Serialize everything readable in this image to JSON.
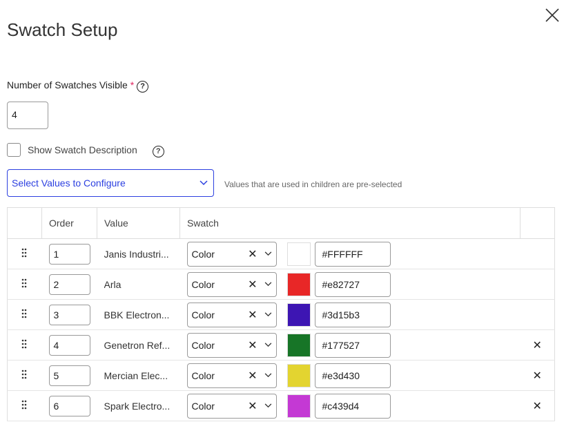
{
  "title": "Swatch Setup",
  "num_label": "Number of Swatches Visible",
  "required_mark": "*",
  "help_icon": "?",
  "num_value": "4",
  "show_desc_label": "Show Swatch Description",
  "show_desc_checked": false,
  "select_label": "Select Values to Configure",
  "note": "Values that are used in children are pre-selected",
  "columns": [
    "",
    "Order",
    "Value",
    "Swatch",
    ""
  ],
  "rows": [
    {
      "order": "1",
      "value": "Janis Industri...",
      "type": "Color",
      "color": "#FFFFFF",
      "hex": "#FFFFFF",
      "deletable": false
    },
    {
      "order": "2",
      "value": "Arla",
      "type": "Color",
      "color": "#e82727",
      "hex": "#e82727",
      "deletable": false
    },
    {
      "order": "3",
      "value": "BBK Electron...",
      "type": "Color",
      "color": "#3d15b3",
      "hex": "#3d15b3",
      "deletable": false
    },
    {
      "order": "4",
      "value": "Genetron Ref...",
      "type": "Color",
      "color": "#177527",
      "hex": "#177527",
      "deletable": true
    },
    {
      "order": "5",
      "value": "Mercian Elec...",
      "type": "Color",
      "color": "#e3d430",
      "hex": "#e3d430",
      "deletable": true
    },
    {
      "order": "6",
      "value": "Spark Electro...",
      "type": "Color",
      "color": "#c439d4",
      "hex": "#c439d4",
      "deletable": true
    }
  ]
}
